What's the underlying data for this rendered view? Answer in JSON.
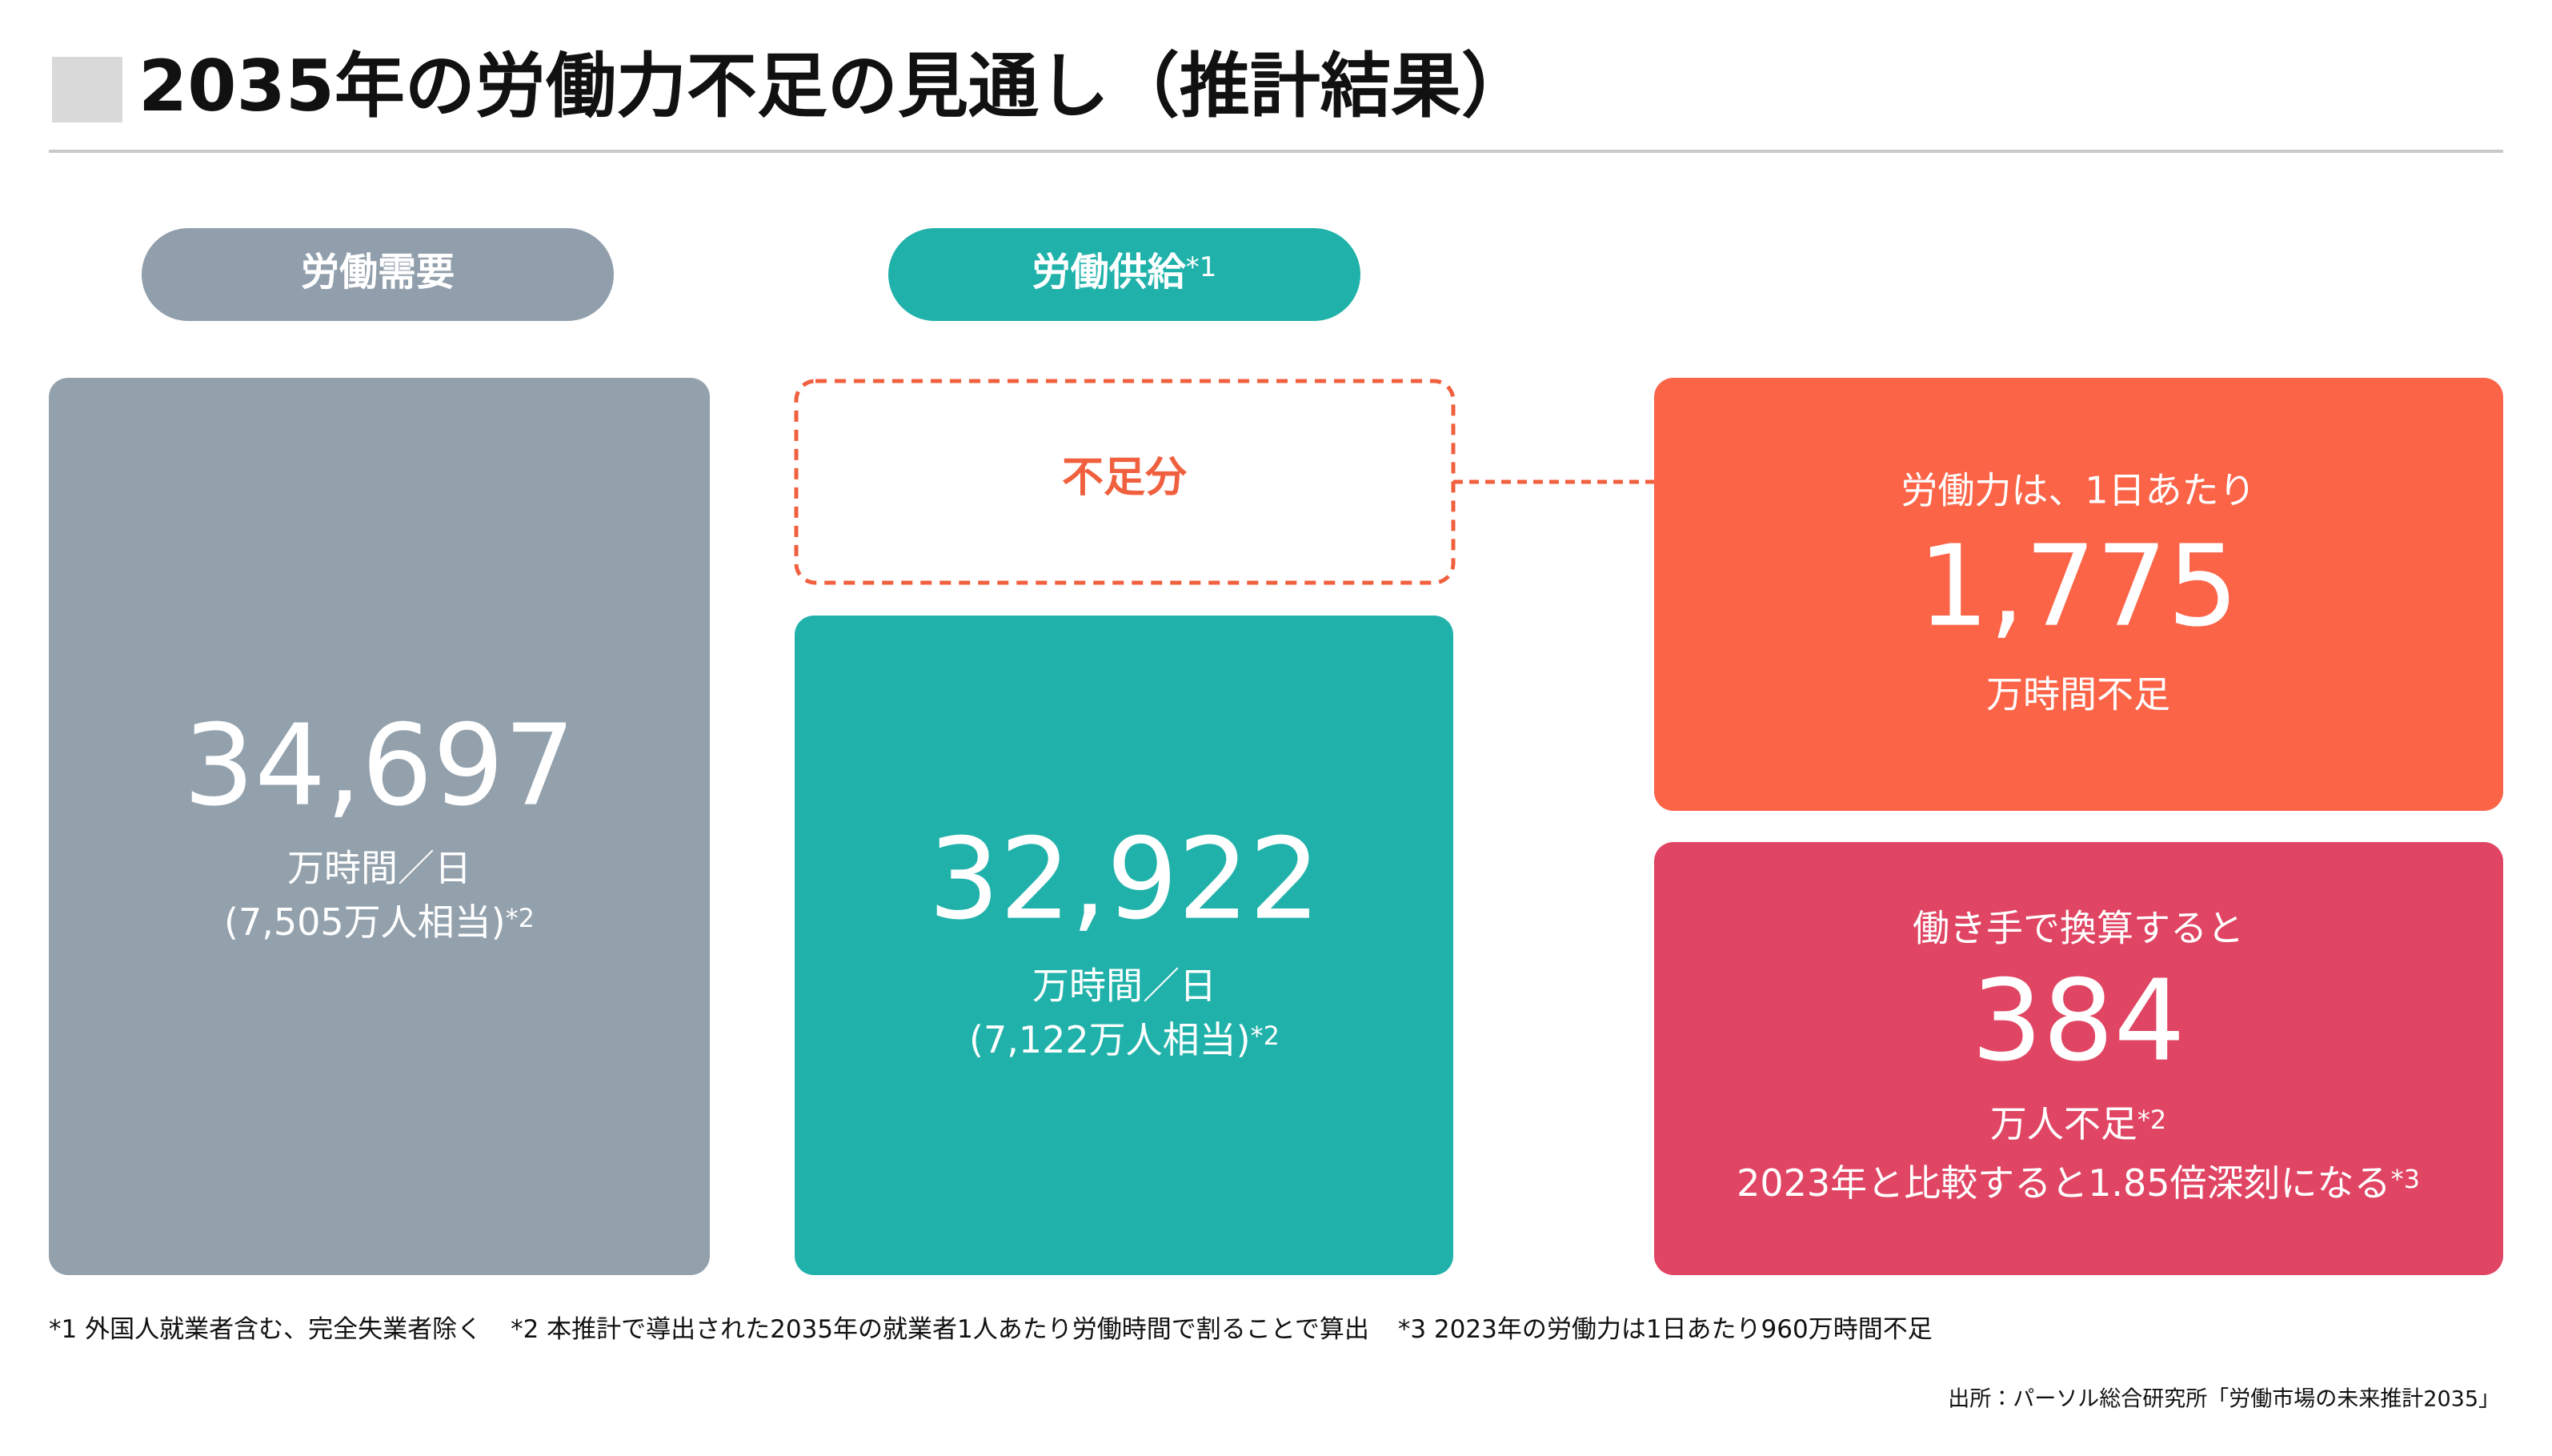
{
  "title": "2035年の労働力不足の見通し（推計結果）",
  "demand": {
    "label": "労働需要",
    "value": "34,697",
    "unit": "万時間／日",
    "note": "(7,505万人相当)",
    "note_mark": "*2"
  },
  "supply": {
    "label": "労働供給",
    "label_mark": "*1",
    "value": "32,922",
    "unit": "万時間／日",
    "note": "(7,122万人相当)",
    "note_mark": "*2"
  },
  "shortage_label": "不足分",
  "shortage_hours": {
    "lead": "労働力は、1日あたり",
    "value": "1,775",
    "unit": "万時間不足"
  },
  "shortage_workers": {
    "lead": "働き手で換算すると",
    "value": "384",
    "unit": "万人不足",
    "unit_mark": "*2",
    "comparison": "2023年と比較すると1.85倍深刻になる",
    "comparison_mark": "*3"
  },
  "footnotes": [
    "*1 外国人就業者含む、完全失業者除く",
    "*2 本推計で導出された2035年の就業者1人あたり労働時間で割ることで算出",
    "*3 2023年の労働力は1日あたり960万時間不足"
  ],
  "source": "出所：パーソル総合研究所「労働市場の未来推計2035」"
}
